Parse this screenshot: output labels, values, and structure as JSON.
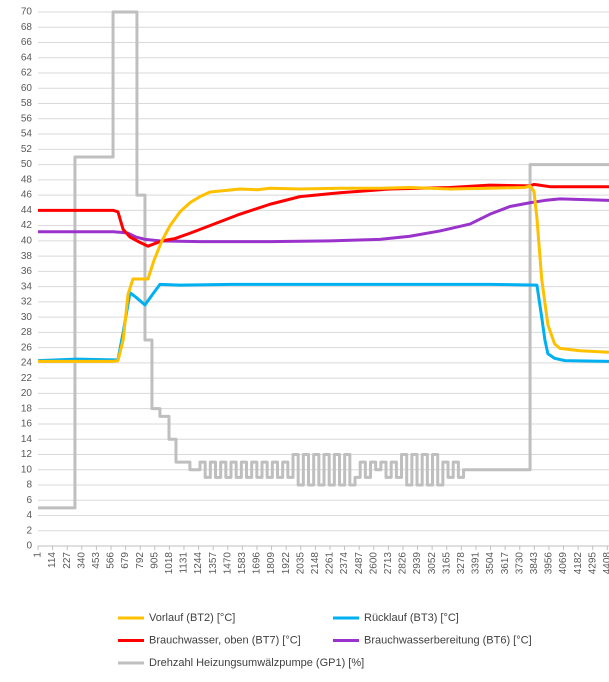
{
  "chart_data": {
    "type": "line",
    "xlim": [
      1,
      4421
    ],
    "xticks": [
      1,
      114,
      227,
      340,
      453,
      566,
      679,
      792,
      905,
      1018,
      1131,
      1244,
      1357,
      1470,
      1583,
      1696,
      1809,
      1922,
      2035,
      2148,
      2261,
      2374,
      2487,
      2600,
      2713,
      2826,
      2939,
      3052,
      3165,
      3278,
      3391,
      3504,
      3617,
      3730,
      3843,
      3956,
      4069,
      4182,
      4295,
      4408
    ],
    "ylim": [
      0,
      70
    ],
    "yticks": [
      0,
      2,
      4,
      6,
      8,
      10,
      12,
      14,
      16,
      18,
      20,
      22,
      24,
      26,
      28,
      30,
      32,
      34,
      36,
      38,
      40,
      42,
      44,
      46,
      48,
      50,
      52,
      54,
      56,
      58,
      60,
      62,
      64,
      66,
      68,
      70
    ],
    "grid": true,
    "legend": "bottom",
    "series": [
      {
        "name": "Drehzahl Heizungsumwälzpumpe (GP1) [%]",
        "color": "#bfbfbf",
        "step": "post",
        "x": [
          1,
          287,
          582,
          767,
          829,
          883,
          945,
          1015,
          1069,
          1177,
          1255,
          1295,
          1335,
          1375,
          1415,
          1455,
          1495,
          1535,
          1575,
          1615,
          1655,
          1695,
          1735,
          1775,
          1815,
          1855,
          1895,
          1935,
          1975,
          2015,
          2055,
          2095,
          2135,
          2175,
          2215,
          2255,
          2295,
          2335,
          2375,
          2415,
          2455,
          2495,
          2535,
          2575,
          2615,
          2655,
          2695,
          2735,
          2775,
          2815,
          2855,
          2895,
          2935,
          2975,
          3015,
          3055,
          3095,
          3135,
          3175,
          3215,
          3255,
          3295,
          3810,
          4421
        ],
        "values": [
          5,
          51,
          70,
          46,
          27,
          18,
          17,
          14,
          11,
          10,
          11,
          9,
          11,
          9,
          11,
          9,
          11,
          9,
          11,
          9,
          11,
          9,
          11,
          9,
          11,
          9,
          11,
          9,
          12,
          8,
          12,
          8,
          12,
          8,
          12,
          8,
          12,
          8,
          12,
          8,
          9,
          11,
          9,
          11,
          10,
          11,
          9,
          11,
          9,
          12,
          8,
          12,
          8,
          12,
          8,
          12,
          8,
          11,
          9,
          11,
          9,
          10,
          50,
          50
        ]
      },
      {
        "name": "Rücklauf (BT3) [°C]",
        "color": "#00b0f0",
        "x": [
          1,
          300,
          582,
          620,
          660,
          713,
          760,
          829,
          880,
          945,
          1100,
          1500,
          2500,
          3500,
          3863,
          3900,
          3925,
          3948,
          4000,
          4080,
          4421
        ],
        "values": [
          24.3,
          24.5,
          24.4,
          24.4,
          28,
          33.2,
          32.6,
          31.6,
          32.8,
          34.3,
          34.2,
          34.3,
          34.3,
          34.3,
          34.2,
          30,
          27,
          25.2,
          24.6,
          24.3,
          24.2
        ]
      },
      {
        "name": "Brauchwasserbereitung (BT6) [°C]",
        "color": "#9933cc",
        "x": [
          1,
          582,
          660,
          698,
          760,
          829,
          945,
          1255,
          1797,
          2261,
          2648,
          2880,
          3113,
          3345,
          3500,
          3654,
          3809,
          3925,
          4041,
          4421
        ],
        "values": [
          41.2,
          41.2,
          41.1,
          41,
          40.5,
          40.2,
          40,
          39.9,
          39.9,
          40,
          40.2,
          40.6,
          41.3,
          42.2,
          43.5,
          44.5,
          45,
          45.3,
          45.5,
          45.3
        ]
      },
      {
        "name": "Brauchwasser, oben (BT7) [°C]",
        "color": "#ff0000",
        "x": [
          1,
          582,
          620,
          660,
          713,
          790,
          852,
          960,
          1061,
          1177,
          1332,
          1564,
          1797,
          2029,
          2338,
          2725,
          3190,
          3500,
          3809,
          3840,
          3964,
          4421
        ],
        "values": [
          44,
          44,
          43.8,
          41.5,
          40.5,
          39.8,
          39.3,
          40,
          40.3,
          41,
          42,
          43.5,
          44.8,
          45.8,
          46.3,
          46.8,
          47,
          47.3,
          47.2,
          47.4,
          47.1,
          47.1
        ]
      },
      {
        "name": "Vorlauf (BT2) [°C]",
        "color": "#ffc000",
        "x": [
          1,
          582,
          620,
          660,
          698,
          736,
          790,
          852,
          900,
          960,
          1023,
          1100,
          1177,
          1255,
          1332,
          1450,
          1564,
          1700,
          1797,
          2029,
          2338,
          2648,
          2880,
          3190,
          3500,
          3770,
          3809,
          3840,
          3863,
          3900,
          3948,
          4000,
          4041,
          4196,
          4421
        ],
        "values": [
          24.2,
          24.2,
          24.3,
          27,
          33,
          35,
          35,
          35,
          37.5,
          40,
          42,
          43.8,
          45,
          45.8,
          46.4,
          46.6,
          46.8,
          46.7,
          46.9,
          46.8,
          46.9,
          46.9,
          47,
          46.8,
          46.9,
          47,
          47.2,
          46.5,
          43,
          35,
          29,
          26.5,
          25.9,
          25.6,
          25.4
        ]
      }
    ]
  }
}
